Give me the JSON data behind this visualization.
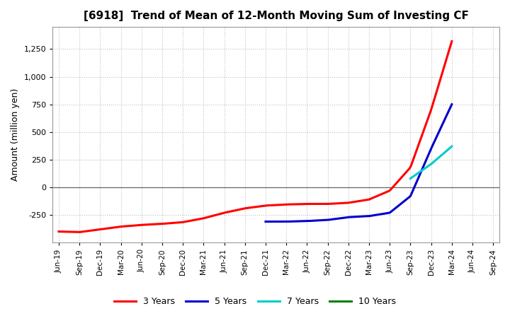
{
  "title": "[6918]  Trend of Mean of 12-Month Moving Sum of Investing CF",
  "ylabel": "Amount (million yen)",
  "ylim": [
    -500,
    1450
  ],
  "yticks": [
    -250,
    0,
    250,
    500,
    750,
    1000,
    1250
  ],
  "background_color": "#ffffff",
  "grid_color": "#c0c0c0",
  "series": {
    "3 Years": {
      "color": "#ff0000",
      "x_dates": [
        "Jun-19",
        "Sep-19",
        "Dec-19",
        "Mar-20",
        "Jun-20",
        "Sep-20",
        "Dec-20",
        "Mar-21",
        "Jun-21",
        "Sep-21",
        "Dec-21",
        "Mar-22",
        "Jun-22",
        "Sep-22",
        "Dec-22",
        "Mar-23",
        "Jun-23",
        "Sep-23",
        "Dec-23",
        "Mar-24"
      ],
      "data": [
        -400,
        -405,
        -380,
        -355,
        -340,
        -330,
        -315,
        -280,
        -230,
        -190,
        -165,
        -155,
        -150,
        -150,
        -140,
        -110,
        -30,
        180,
        700,
        1320
      ]
    },
    "5 Years": {
      "color": "#0000cc",
      "x_dates": [
        "Dec-21",
        "Mar-22",
        "Jun-22",
        "Sep-22",
        "Dec-22",
        "Mar-23",
        "Jun-23",
        "Sep-23",
        "Dec-23",
        "Mar-24"
      ],
      "data": [
        -310,
        -310,
        -305,
        -295,
        -270,
        -260,
        -230,
        -80,
        350,
        750
      ]
    },
    "7 Years": {
      "color": "#00cccc",
      "x_dates": [
        "Sep-23",
        "Dec-23",
        "Mar-24"
      ],
      "data": [
        80,
        210,
        370
      ]
    },
    "10 Years": {
      "color": "#008000",
      "x_dates": [],
      "data": []
    }
  },
  "x_labels": [
    "Jun-19",
    "Sep-19",
    "Dec-19",
    "Mar-20",
    "Jun-20",
    "Sep-20",
    "Dec-20",
    "Mar-21",
    "Jun-21",
    "Sep-21",
    "Dec-21",
    "Mar-22",
    "Jun-22",
    "Sep-22",
    "Dec-22",
    "Mar-23",
    "Jun-23",
    "Sep-23",
    "Dec-23",
    "Mar-24",
    "Jun-24",
    "Sep-24"
  ],
  "legend_labels": [
    "3 Years",
    "5 Years",
    "7 Years",
    "10 Years"
  ],
  "legend_colors": [
    "#ff0000",
    "#0000cc",
    "#00cccc",
    "#008000"
  ]
}
